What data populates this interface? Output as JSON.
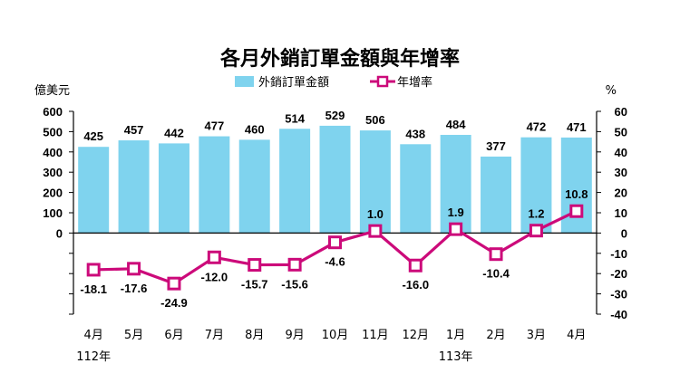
{
  "chart_data": {
    "type": "bar+line",
    "title": "各月外銷訂單金額與年增率",
    "left_unit": "億美元",
    "right_unit": "%",
    "categories": [
      "4月",
      "5月",
      "6月",
      "7月",
      "8月",
      "9月",
      "10月",
      "11月",
      "12月",
      "1月",
      "2月",
      "3月",
      "4月"
    ],
    "year_labels": [
      {
        "label": "112年",
        "at_category": 0
      },
      {
        "label": "113年",
        "at_category": 9
      }
    ],
    "series": [
      {
        "name": "外銷訂單金額",
        "type": "bar",
        "axis": "left",
        "color": "#7fd3ee",
        "values": [
          425,
          457,
          442,
          477,
          460,
          514,
          529,
          506,
          438,
          484,
          377,
          472,
          471
        ],
        "labels": [
          "425",
          "457",
          "442",
          "477",
          "460",
          "514",
          "529",
          "506",
          "438",
          "484",
          "377",
          "472",
          "471"
        ]
      },
      {
        "name": "年增率",
        "type": "line",
        "axis": "right",
        "color": "#cc0a7a",
        "values": [
          -18.1,
          -17.6,
          -24.9,
          -12.0,
          -15.7,
          -15.6,
          -4.6,
          1.0,
          -16.0,
          1.9,
          -10.4,
          1.2,
          10.8
        ],
        "labels": [
          "-18.1",
          "-17.6",
          "-24.9",
          "-12.0",
          "-15.7",
          "-15.6",
          "-4.6",
          "1.0",
          "-16.0",
          "1.9",
          "-10.4",
          "1.2",
          "10.8"
        ]
      }
    ],
    "left_axis": {
      "ylim": [
        -400,
        600
      ],
      "ticks": [
        0,
        100,
        200,
        300,
        400,
        500,
        600
      ]
    },
    "right_axis": {
      "ylim": [
        -40,
        60
      ],
      "ticks": [
        60,
        50,
        40,
        30,
        20,
        10,
        0,
        -10,
        -20,
        -30,
        -40
      ]
    },
    "legend_position": "top-center",
    "grid": false
  }
}
